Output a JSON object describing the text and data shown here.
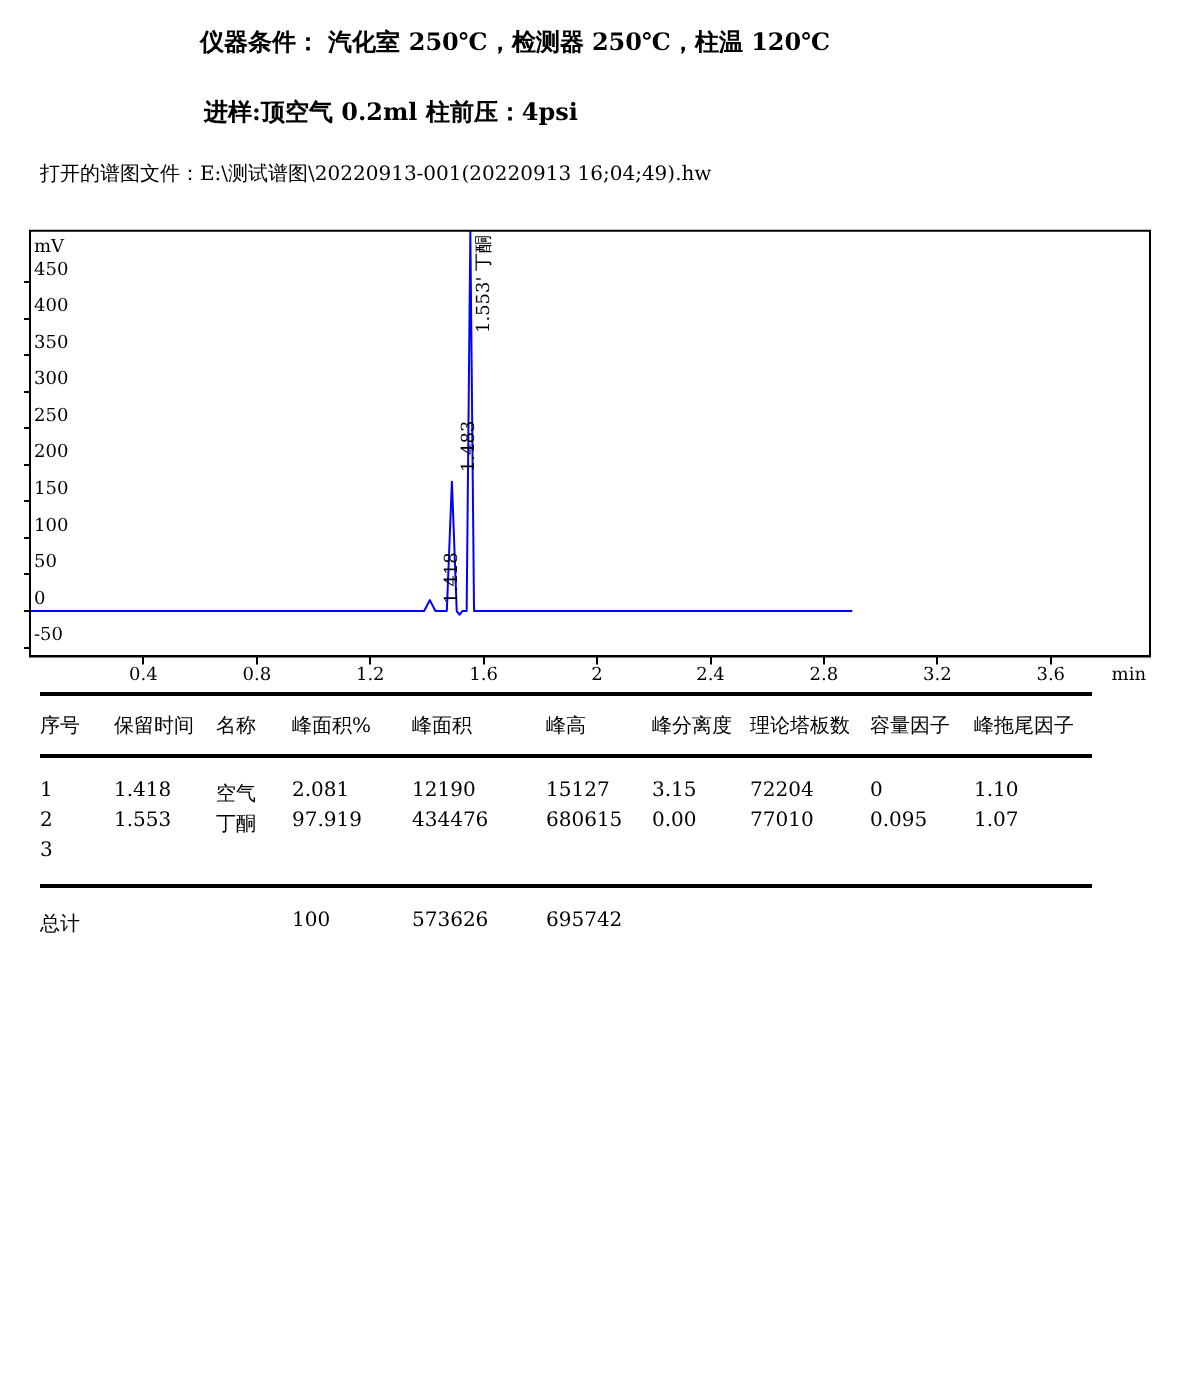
{
  "chart_data": {
    "type": "line",
    "title": "仪器条件：  汽化室 250℃，检测器 250℃，柱温 120℃",
    "subtitle": "进样:顶空气 0.2ml    柱前压：4psi",
    "xlabel": "min",
    "ylabel": "mV",
    "series": [
      {
        "color": "#0000ff",
        "x": [
          0,
          1.39,
          1.41,
          1.43,
          1.47,
          1.488,
          1.505,
          1.515,
          1.525,
          1.54,
          1.553,
          1.566,
          2.9
        ],
        "values": [
          0,
          0,
          15,
          0,
          0,
          177,
          0,
          -5,
          0,
          0,
          520,
          0,
          0
        ]
      }
    ],
    "xlim": [
      0,
      3.95
    ],
    "xticks": [
      0.4,
      0.8,
      1.2,
      1.6,
      2,
      2.4,
      2.8,
      3.2,
      3.6
    ],
    "ylim": [
      -62,
      520
    ],
    "yticks": [
      -50,
      0,
      50,
      100,
      150,
      200,
      250,
      300,
      350,
      400,
      450
    ],
    "grid": false,
    "legend": false,
    "marker": "none",
    "line_style": "solid",
    "annotations": [
      "打开的谱图文件：E:\\测试谱图\\20220913-001(20220913 16;04;49).hw",
      {
        "text": "1.418",
        "x": 1.49,
        "y": 10
      },
      {
        "text": "1.483",
        "x": 1.55,
        "y": 190
      },
      {
        "text": "1.553' 丁酮",
        "x": 1.553,
        "y": 520
      },
      "序号\t保留时间\t名称\t峰面积%\t峰面积\t峰高\t峰分离度\t理论塔板数\t容量因子\t峰拖尾因子",
      "1\t1.418\t空气\t2.081\t12190\t15127\t3.15\t72204\t0\t1.10",
      "2\t1.553\t丁酮\t97.919\t434476\t680615\t0.00\t77010\t0.095\t1.07",
      "3",
      "总计\t\t\t100\t573626\t695742"
    ]
  }
}
